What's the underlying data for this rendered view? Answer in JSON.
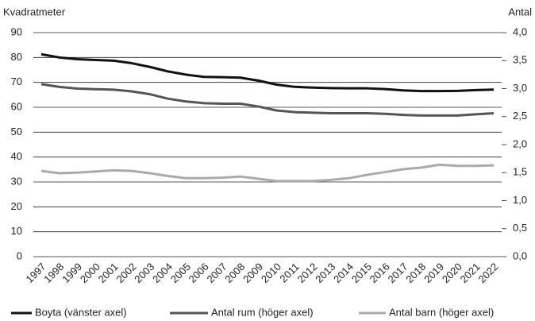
{
  "chart_data": {
    "type": "line",
    "y_label": "Kvadratmeter",
    "y2_label": "Antal",
    "categories": [
      "1997",
      "1998",
      "1999",
      "2000",
      "2001",
      "2002",
      "2003",
      "2004",
      "2005",
      "2006",
      "2007",
      "2008",
      "2009",
      "2010",
      "2011",
      "2012",
      "2013",
      "2014",
      "2015",
      "2016",
      "2017",
      "2018",
      "2019",
      "2020",
      "2021",
      "2022"
    ],
    "series": [
      {
        "name": "Boyta (vänster axel)",
        "color": "#111111",
        "values": [
          81.3,
          80.0,
          79.3,
          79.0,
          78.7,
          77.7,
          76.2,
          74.4,
          73.1,
          72.2,
          72.1,
          71.9,
          70.7,
          69.1,
          68.2,
          67.9,
          67.7,
          67.6,
          67.6,
          67.3,
          66.8,
          66.5,
          66.5,
          66.6,
          66.9,
          67.1
        ]
      },
      {
        "name": "Antal rum (höger axel)",
        "color": "#555555",
        "axis": "y2",
        "values": [
          3.08,
          3.03,
          3.0,
          2.99,
          2.98,
          2.95,
          2.9,
          2.82,
          2.77,
          2.74,
          2.73,
          2.73,
          2.68,
          2.61,
          2.58,
          2.57,
          2.56,
          2.56,
          2.56,
          2.55,
          2.53,
          2.52,
          2.52,
          2.52,
          2.54,
          2.56
        ]
      },
      {
        "name": "Antal barn (höger axel)",
        "color": "#aaaaaa",
        "axis": "y2",
        "values": [
          1.53,
          1.49,
          1.5,
          1.52,
          1.54,
          1.53,
          1.49,
          1.44,
          1.4,
          1.4,
          1.41,
          1.43,
          1.39,
          1.35,
          1.35,
          1.35,
          1.37,
          1.4,
          1.46,
          1.51,
          1.56,
          1.59,
          1.64,
          1.62,
          1.62,
          1.63
        ]
      }
    ],
    "ylim": [
      0,
      90
    ],
    "yticks": [
      0,
      10,
      20,
      30,
      40,
      50,
      60,
      70,
      80,
      90
    ],
    "y2lim": [
      0,
      4
    ],
    "y2ticks": [
      {
        "value": 0,
        "label": "0,0"
      },
      {
        "value": 0.5,
        "label": "0,5"
      },
      {
        "value": 1,
        "label": "1,0"
      },
      {
        "value": 1.5,
        "label": "1,5"
      },
      {
        "value": 2,
        "label": "2,0"
      },
      {
        "value": 2.5,
        "label": "2,5"
      },
      {
        "value": 3,
        "label": "3,0"
      },
      {
        "value": 3.5,
        "label": "3,5"
      },
      {
        "value": 4,
        "label": "4,0"
      }
    ],
    "grid": true
  }
}
